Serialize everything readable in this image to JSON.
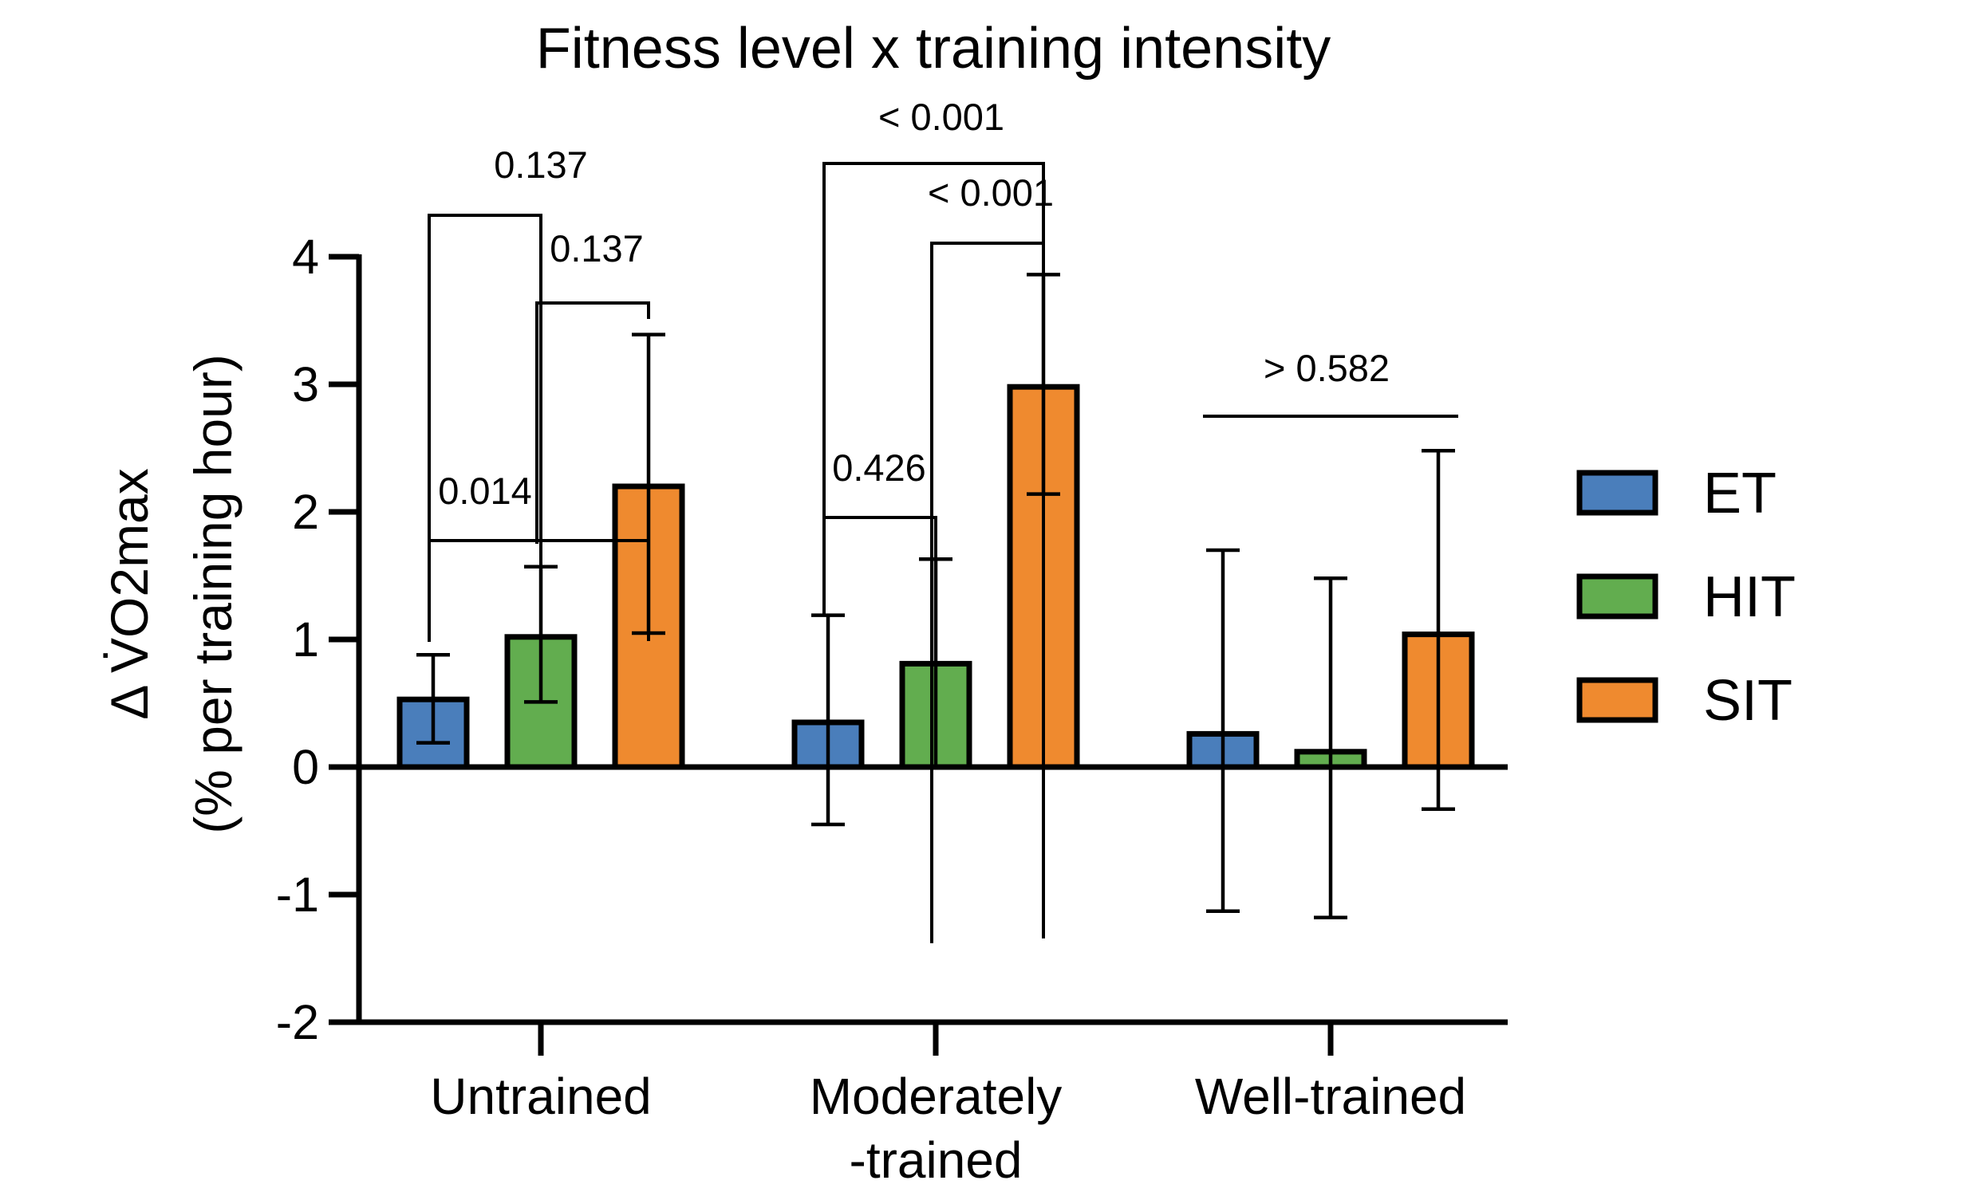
{
  "chart_data": {
    "type": "bar",
    "title": "Fitness level x training intensity",
    "ylabel_line1": "Δ V̇O2max",
    "ylabel_line2": "(% per training hour)",
    "xlabel": "",
    "ylim": [
      -2,
      4
    ],
    "yticks": [
      -2,
      -1,
      0,
      1,
      2,
      3,
      4
    ],
    "categories": [
      {
        "label": "Untrained",
        "lines": [
          "Untrained"
        ]
      },
      {
        "label": "Moderately -trained",
        "lines": [
          "Moderately",
          "-trained"
        ]
      },
      {
        "label": "Well-trained",
        "lines": [
          "Well-trained"
        ]
      }
    ],
    "series": [
      {
        "name": "ET",
        "color": "#4a7ebb",
        "values": [
          0.53,
          0.35,
          0.26
        ],
        "err_low": [
          0.19,
          -0.45,
          -1.13
        ],
        "err_high": [
          0.88,
          1.19,
          1.7
        ]
      },
      {
        "name": "HIT",
        "color": "#62ad4f",
        "values": [
          1.02,
          0.81,
          0.12
        ],
        "err_low": [
          0.51,
          0.0,
          -1.18
        ],
        "err_high": [
          1.57,
          1.63,
          1.48
        ]
      },
      {
        "name": "SIT",
        "color": "#ef8a2f",
        "values": [
          2.2,
          2.98,
          1.04
        ],
        "err_low": [
          1.05,
          2.14,
          -0.33
        ],
        "err_high": [
          3.39,
          3.86,
          2.48
        ]
      }
    ],
    "comparisons": [
      {
        "group": 0,
        "from": "ET",
        "to": "HIT",
        "p": "0.137"
      },
      {
        "group": 0,
        "from": "HIT",
        "to": "SIT",
        "p": "0.137"
      },
      {
        "group": 0,
        "from": "ET",
        "to": "SIT",
        "p": "0.014"
      },
      {
        "group": 1,
        "from": "ET",
        "to": "HIT",
        "p": "0.426"
      },
      {
        "group": 1,
        "from": "HIT",
        "to": "SIT",
        "p": "< 0.001"
      },
      {
        "group": 1,
        "from": "ET",
        "to": "SIT",
        "p": "< 0.001"
      },
      {
        "group": 2,
        "from": "ET",
        "to": "SIT",
        "p": "> 0.582"
      }
    ],
    "legend": {
      "position": "right",
      "entries": [
        "ET",
        "HIT",
        "SIT"
      ]
    }
  }
}
